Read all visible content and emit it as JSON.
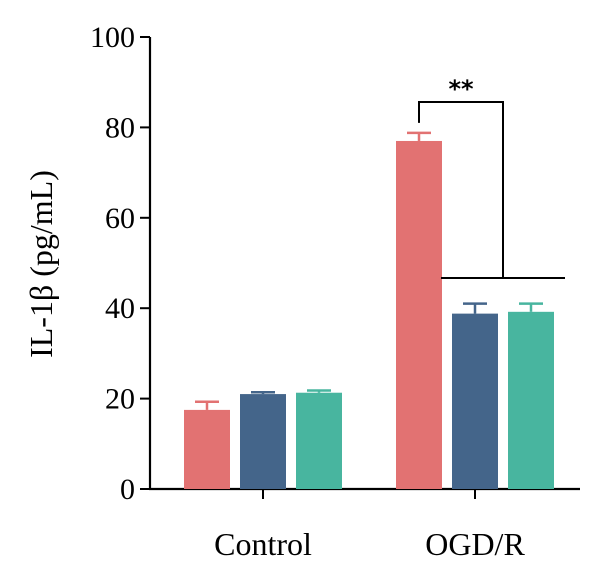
{
  "chart_data": {
    "type": "bar",
    "title": "",
    "xlabel": "",
    "ylabel": "IL-1β (pg/mL)",
    "ylim": [
      0,
      100
    ],
    "yticks": [
      0,
      20,
      40,
      60,
      80,
      100
    ],
    "grid": false,
    "legend": "none",
    "categories": [
      "Control",
      "OGD/R"
    ],
    "series": [
      {
        "color": "#e27272",
        "values": [
          17.5,
          77
        ],
        "errors": [
          1.8,
          1.8
        ]
      },
      {
        "color": "#44658a",
        "values": [
          21,
          38.8
        ],
        "errors": [
          0.4,
          2.2
        ]
      },
      {
        "color": "#48b59f",
        "values": [
          21.3,
          39.2
        ],
        "errors": [
          0.5,
          1.8
        ]
      }
    ],
    "annotations": [
      {
        "text": "**",
        "category": "OGD/R",
        "from_series": 0,
        "to_series": [
          1,
          2
        ]
      }
    ]
  }
}
